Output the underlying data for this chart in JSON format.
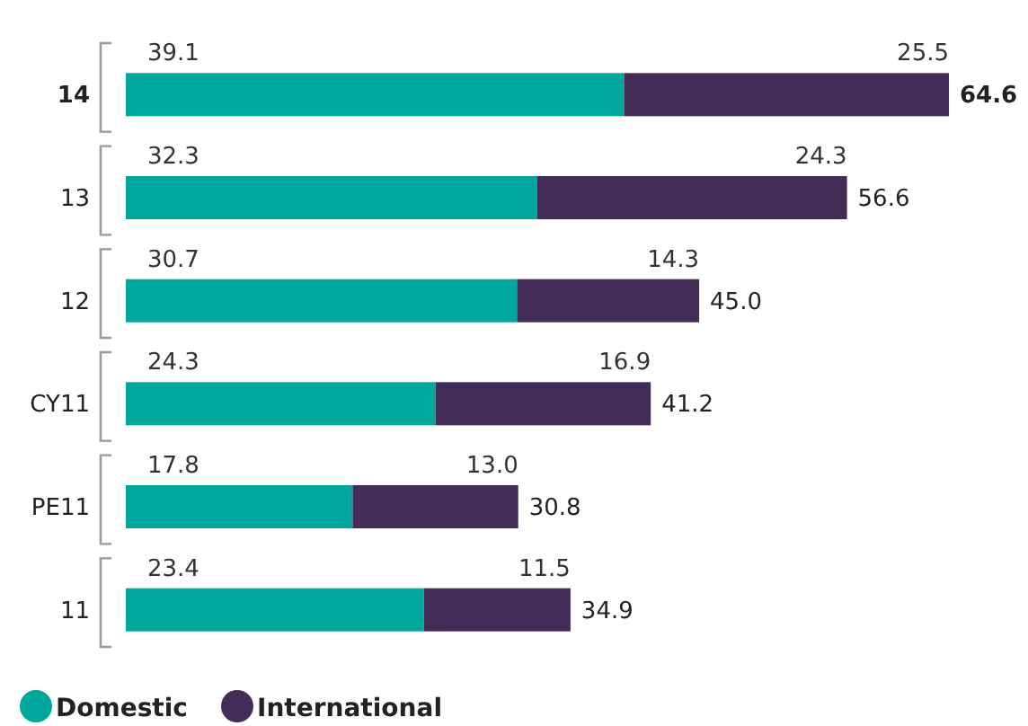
{
  "chart_data": {
    "type": "bar",
    "orientation": "horizontal",
    "stacked": true,
    "legend": "bottom left",
    "categories": [
      "14",
      "13",
      "12",
      "CY11",
      "PE11",
      "11"
    ],
    "series": [
      {
        "name": "Domestic",
        "color": "#00a79d",
        "values": [
          39.1,
          32.3,
          30.7,
          24.3,
          17.8,
          23.4
        ],
        "value_labels": [
          "39.1",
          "32.3",
          "30.7",
          "24.3",
          "17.8",
          "23.4"
        ]
      },
      {
        "name": "International",
        "color": "#432c57",
        "values": [
          25.5,
          24.3,
          14.3,
          16.9,
          13.0,
          11.5
        ],
        "value_labels": [
          "25.5",
          "24.3",
          "14.3",
          "16.9",
          "13.0",
          "11.5"
        ]
      }
    ],
    "totals": [
      "64.6",
      "56.6",
      "45.0",
      "41.2",
      "30.8",
      "34.9"
    ]
  }
}
